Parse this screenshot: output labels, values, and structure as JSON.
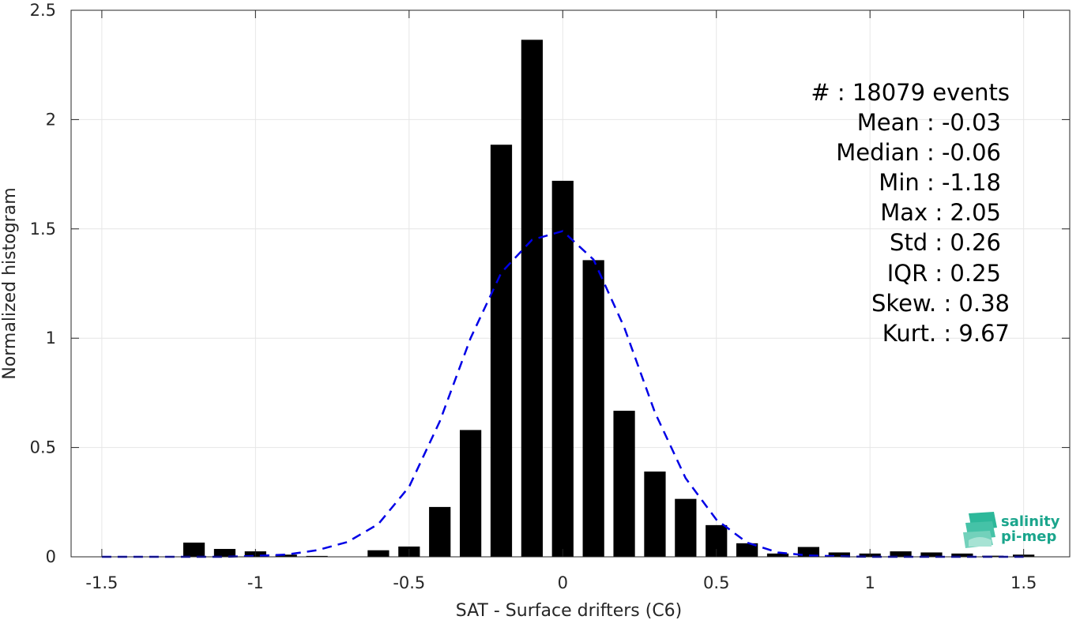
{
  "chart_data": {
    "type": "bar",
    "xlabel": "SAT - Surface drifters (C6)",
    "ylabel": "Normalized histogram",
    "xlim": [
      -1.6,
      1.65
    ],
    "ylim": [
      0,
      2.5
    ],
    "xticks": [
      -1.5,
      -1,
      -0.5,
      0,
      0.5,
      1,
      1.5
    ],
    "xtick_labels": [
      "-1.5",
      "-1",
      "-0.5",
      "0",
      "0.5",
      "1",
      "1.5"
    ],
    "yticks": [
      0,
      0.5,
      1,
      1.5,
      2,
      2.5
    ],
    "ytick_labels": [
      "0",
      "0.5",
      "1",
      "1.5",
      "2",
      "2.5"
    ],
    "grid": true,
    "bar_color": "#000000",
    "bar_width": 0.07,
    "bars": {
      "x": [
        -1.2,
        -1.1,
        -1.0,
        -0.9,
        -0.8,
        -0.6,
        -0.5,
        -0.4,
        -0.3,
        -0.2,
        -0.1,
        0.0,
        0.1,
        0.2,
        0.3,
        0.4,
        0.5,
        0.6,
        0.7,
        0.8,
        0.9,
        1.0,
        1.1,
        1.2,
        1.3,
        1.4,
        1.5
      ],
      "values": [
        0.065,
        0.036,
        0.025,
        0.01,
        0.004,
        0.03,
        0.047,
        0.228,
        0.58,
        1.885,
        2.365,
        1.72,
        1.357,
        0.668,
        0.39,
        0.265,
        0.145,
        0.062,
        0.015,
        0.045,
        0.02,
        0.015,
        0.025,
        0.02,
        0.015,
        0.005,
        0.01
      ]
    },
    "fit_curve": {
      "name": "Gaussian fit",
      "style": "dashed",
      "color": "#0000e6",
      "x": [
        -1.5,
        -1.4,
        -1.3,
        -1.2,
        -1.1,
        -1.0,
        -0.9,
        -0.8,
        -0.7,
        -0.6,
        -0.5,
        -0.4,
        -0.3,
        -0.2,
        -0.1,
        0.0,
        0.1,
        0.2,
        0.3,
        0.4,
        0.5,
        0.6,
        0.7,
        0.8,
        0.9,
        1.0,
        1.1,
        1.2,
        1.3,
        1.4,
        1.5
      ],
      "values": [
        0.0,
        0.0,
        0.0,
        0.0,
        0.0,
        0.004,
        0.01,
        0.03,
        0.068,
        0.15,
        0.32,
        0.62,
        1.0,
        1.3,
        1.45,
        1.49,
        1.36,
        1.05,
        0.66,
        0.36,
        0.17,
        0.065,
        0.02,
        0.006,
        0.002,
        0.0,
        0.0,
        0.0,
        0.0,
        0.0,
        0.0
      ]
    },
    "annotations": [
      "#  : 18079 events",
      "Mean : -0.03",
      "Median : -0.06",
      "Min : -1.18",
      "Max : 2.05",
      "Std : 0.26",
      "IQR : 0.25",
      "Skew. : 0.38",
      "Kurt. : 9.67"
    ]
  },
  "logo": {
    "line1": "salinity",
    "line2": "pi-mep",
    "color": "#1aa58c"
  }
}
